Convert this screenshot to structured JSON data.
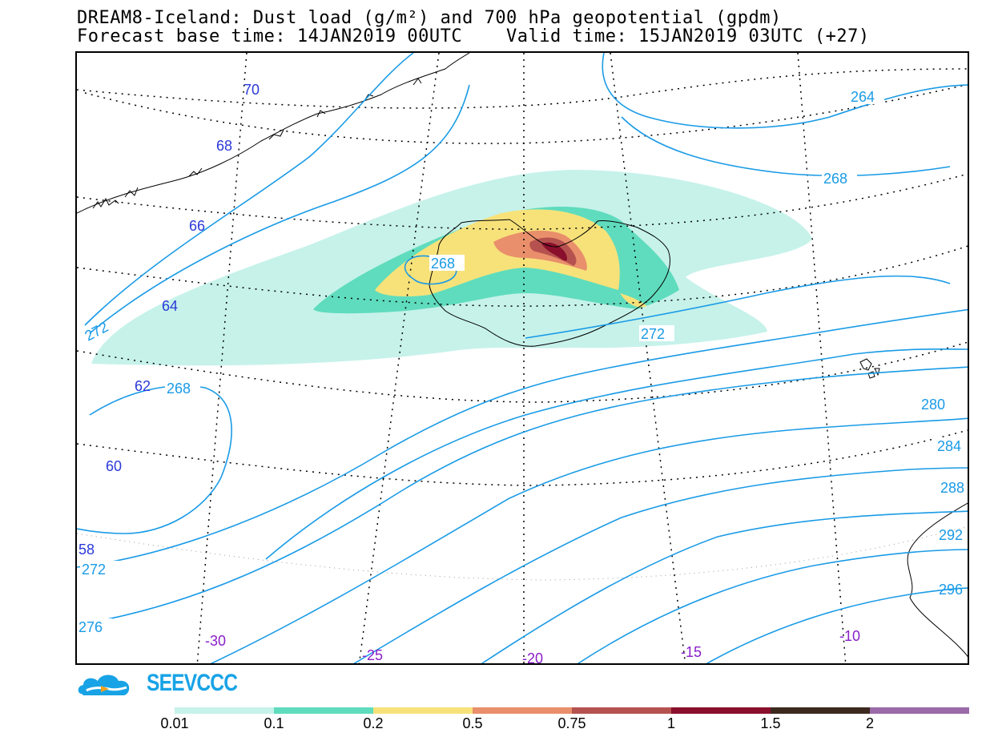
{
  "title": {
    "line1": "DREAM8-Iceland: Dust load (g/m²) and 700 hPa geopotential (gpdm)",
    "line2": "Forecast base time: 14JAN2019 00UTC    Valid time: 15JAN2019 03UTC (+27)"
  },
  "map": {
    "latitude_labels": [
      "70",
      "68",
      "66",
      "64",
      "62",
      "60",
      "58"
    ],
    "longitude_labels": [
      "-30",
      "-25",
      "-20",
      "-15",
      "-10"
    ],
    "contour_labels": [
      "264",
      "268",
      "268",
      "272",
      "272",
      "268",
      "280",
      "284",
      "288",
      "272",
      "276",
      "292",
      "296"
    ],
    "colors": {
      "contour": "#1a9be6",
      "latitude_label": "#2b38d8",
      "longitude_label": "#8a1fc9"
    }
  },
  "logo": {
    "text": "SEEVCCC"
  },
  "legend": {
    "labels": [
      "0.01",
      "0.1",
      "0.2",
      "0.5",
      "0.75",
      "1",
      "1.5",
      "2"
    ],
    "colors": [
      "#c6f2ea",
      "#5fdcbd",
      "#f7e27a",
      "#e98f6b",
      "#b5524f",
      "#8a0f2c",
      "#3c2a1f",
      "#9b6aa8"
    ]
  }
}
